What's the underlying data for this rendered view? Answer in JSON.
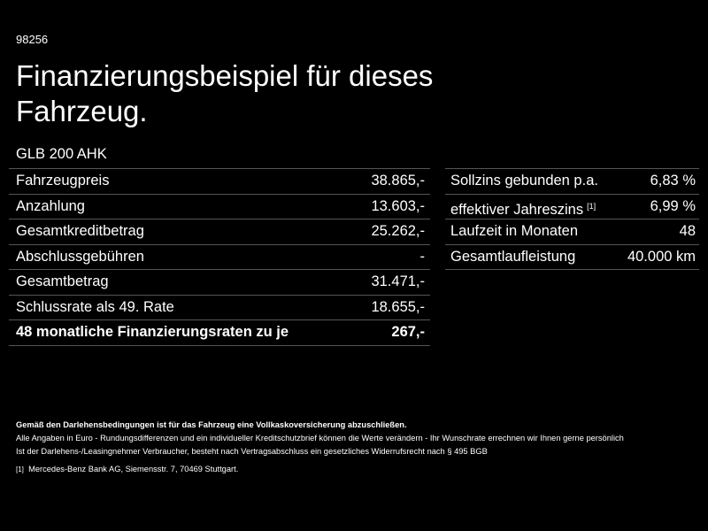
{
  "header": {
    "id": "98256",
    "title": "Finanzierungsbeispiel für dieses Fahrzeug.",
    "model": "GLB 200 AHK"
  },
  "left_table": {
    "rows": [
      [
        "Fahrzeugpreis",
        "38.865,-"
      ],
      [
        "Anzahlung",
        "13.603,-"
      ],
      [
        "Gesamtkreditbetrag",
        "25.262,-"
      ],
      [
        "Abschlussgebühren",
        "-"
      ],
      [
        "Gesamtbetrag",
        "31.471,-"
      ],
      [
        "Schlussrate als 49. Rate",
        "18.655,-"
      ],
      [
        "48 monatliche Finanzierungsraten zu je",
        "267,-"
      ]
    ]
  },
  "right_table": {
    "rows": [
      [
        "Sollzins gebunden p.a.",
        "6,83 %"
      ],
      [
        "effektiver Jahreszins",
        "6,99 %"
      ],
      [
        "Laufzeit in Monaten",
        "48"
      ],
      [
        "Gesamtlaufleistung",
        "40.000 km"
      ]
    ],
    "footnote_ref": "[1]"
  },
  "footer": {
    "notice": "Gemäß den Darlehensbedingungen ist für das Fahrzeug eine Vollkaskoversicherung abzuschließen.",
    "line1": "Alle Angaben in Euro - Rundungsdifferenzen und ein individueller Kreditschutzbrief können die Werte verändern - Ihr Wunschrate errechnen wir Ihnen gerne persönlich",
    "line2": "Ist der Darlehens-/Leasingnehmer Verbraucher, besteht nach Vertragsabschluss ein gesetzliches Widerrufsrecht nach § 495 BGB",
    "footnote_mark": "[1]",
    "footnote_text": "Mercedes-Benz Bank AG, Siemensstr. 7, 70469 Stuttgart."
  }
}
